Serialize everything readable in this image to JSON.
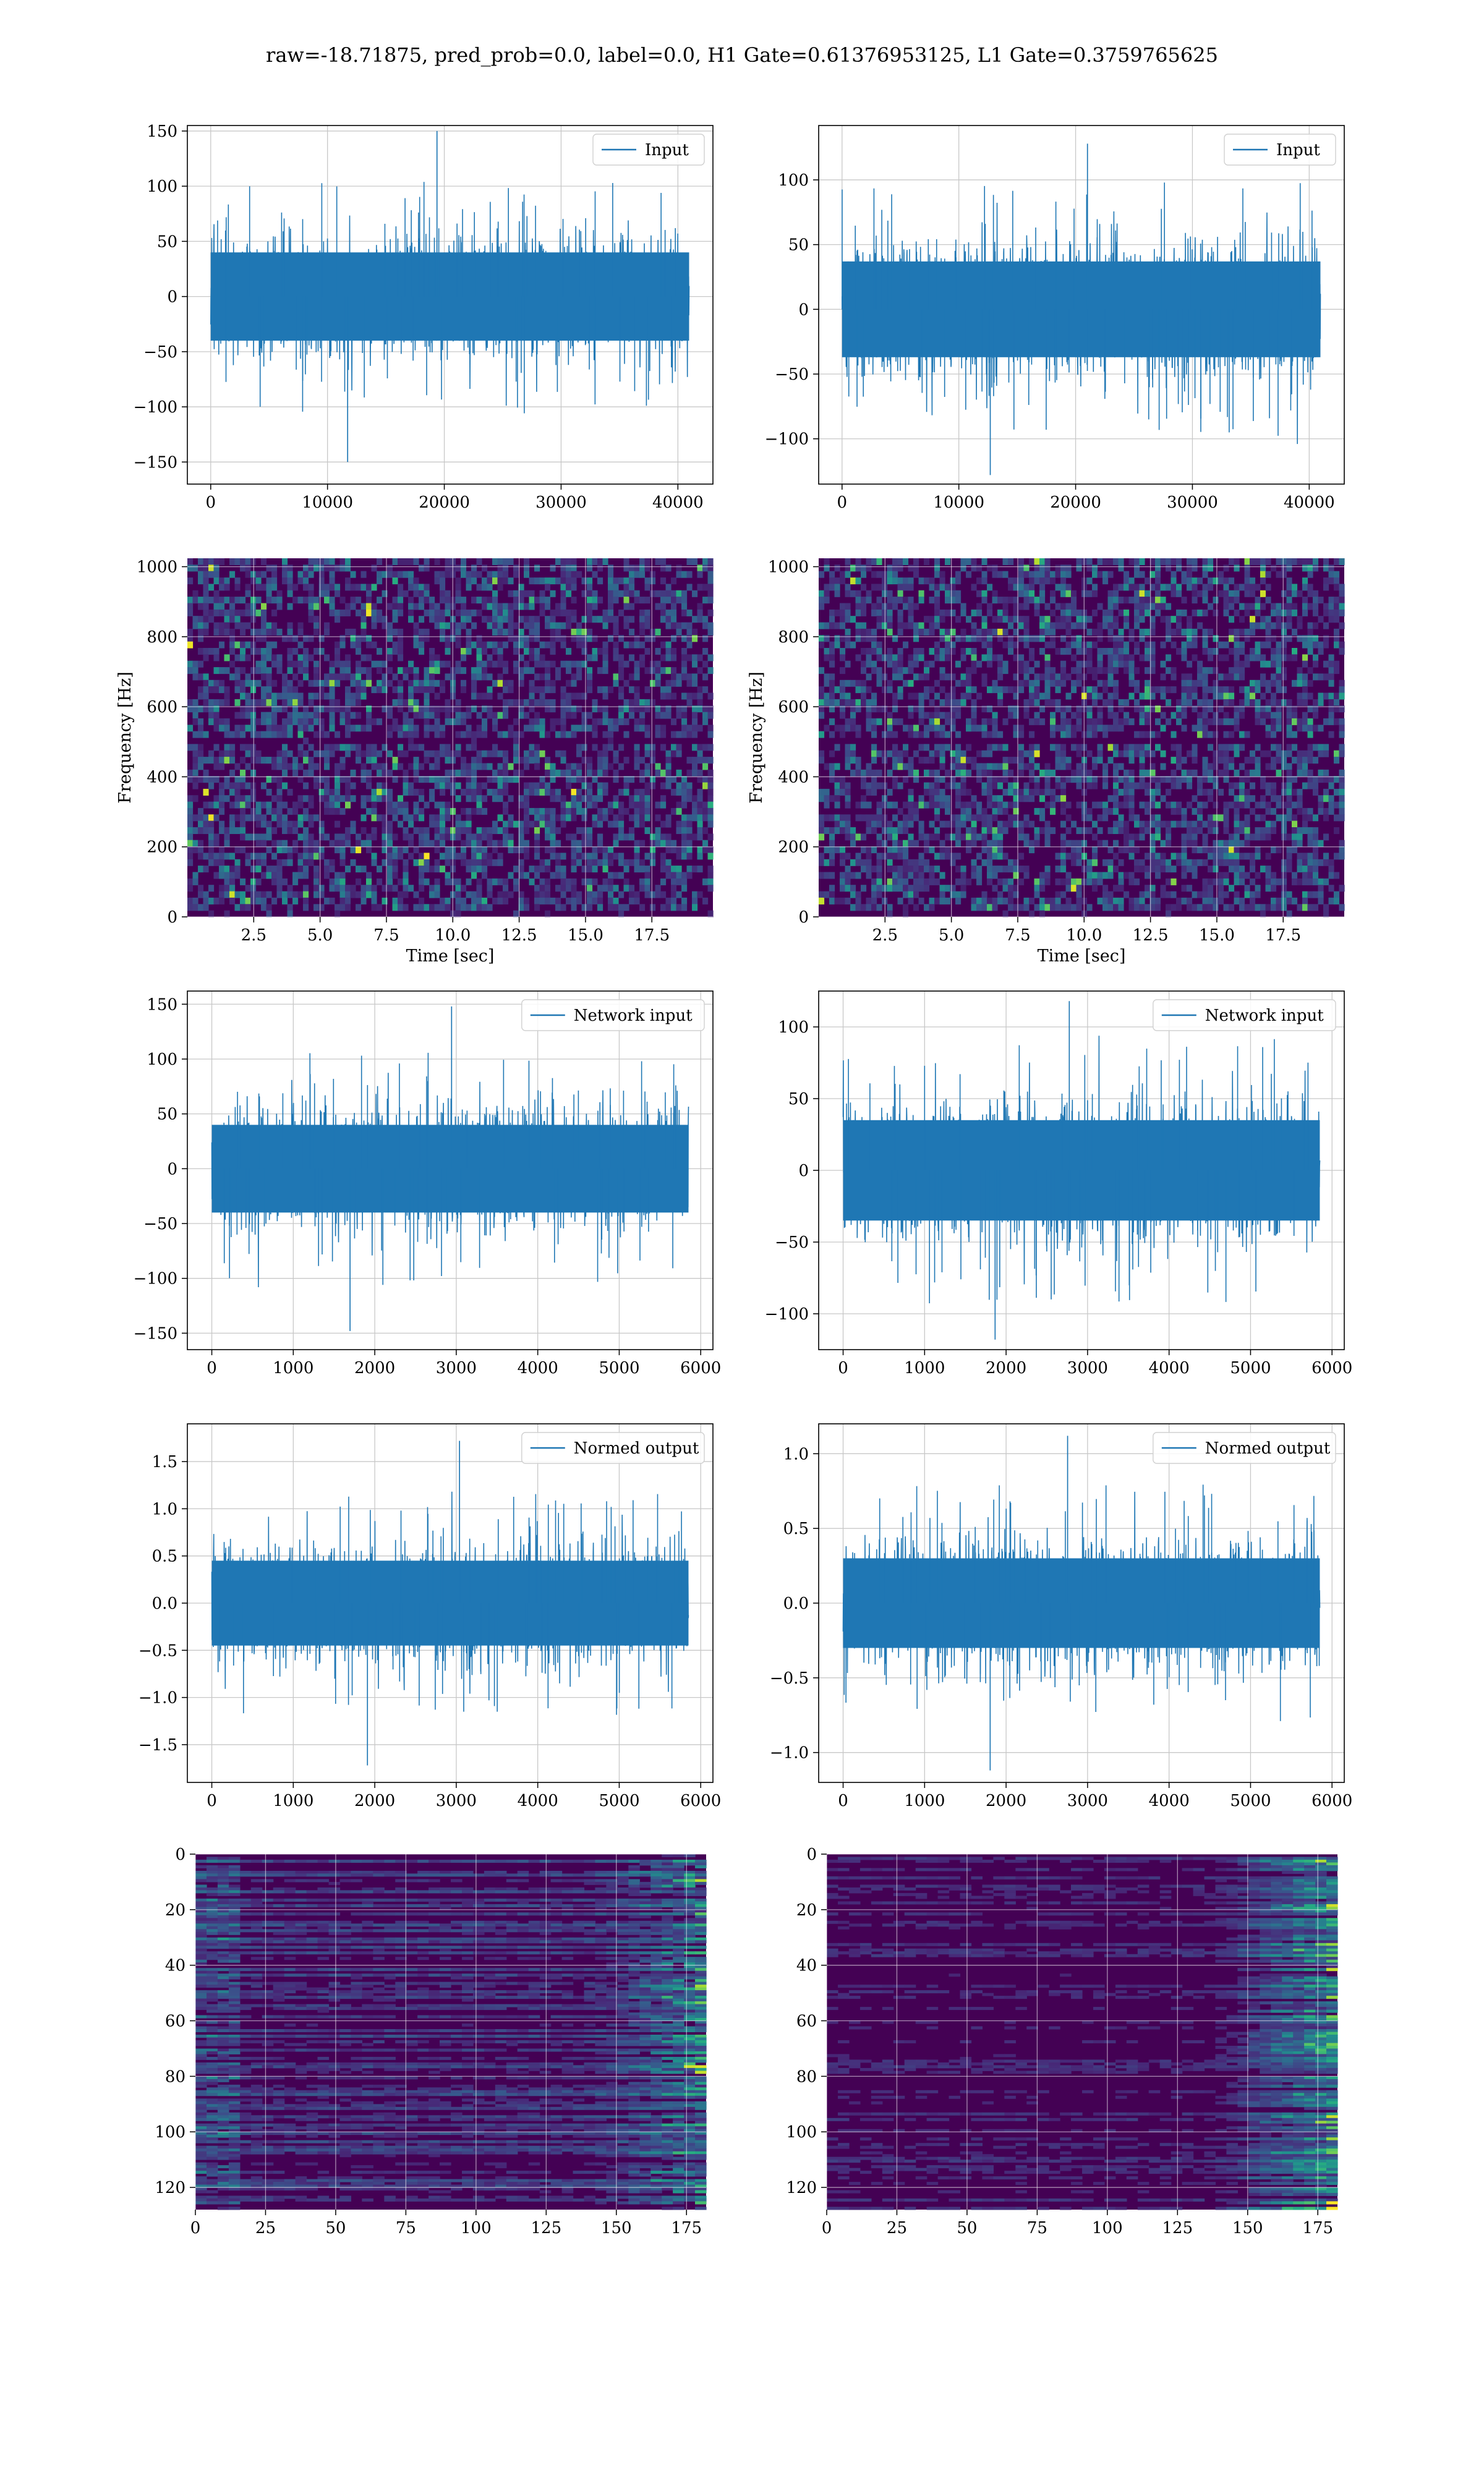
{
  "figure": {
    "suptitle": "raw=-18.71875, pred_prob=0.0, label=0.0, H1 Gate=0.61376953125, L1 Gate=0.3759765625"
  },
  "colors": {
    "line": "#1f77b4",
    "grid": "#c8c8c8",
    "viridis_low": "#440154",
    "viridis_mid": "#21918c",
    "viridis_high": "#fde725"
  },
  "chart_data": [
    {
      "id": "input-h1",
      "type": "line",
      "legend": "Input",
      "xlim": [
        -2000,
        43000
      ],
      "ylim": [
        -170,
        155
      ],
      "xticks": [
        0,
        10000,
        20000,
        30000,
        40000
      ],
      "yticks": [
        -150,
        -100,
        -50,
        0,
        50,
        100,
        150
      ],
      "xlabel": "",
      "ylabel": "",
      "legend_loc": "upper right",
      "signal": {
        "x_start": 0,
        "x_end": 40960,
        "band": 40,
        "peak": 150
      }
    },
    {
      "id": "input-l1",
      "type": "line",
      "legend": "Input",
      "xlim": [
        -2000,
        43000
      ],
      "ylim": [
        -135,
        142
      ],
      "xticks": [
        0,
        10000,
        20000,
        30000,
        40000
      ],
      "yticks": [
        -100,
        -50,
        0,
        50,
        100
      ],
      "xlabel": "",
      "ylabel": "",
      "legend_loc": "upper right",
      "signal": {
        "x_start": 0,
        "x_end": 40960,
        "band": 37,
        "peak": 128
      }
    },
    {
      "id": "spectrogram-h1",
      "type": "heatmap",
      "xlim": [
        0,
        19.8
      ],
      "ylim": [
        0,
        1024
      ],
      "xticks": [
        2.5,
        5.0,
        7.5,
        10.0,
        12.5,
        15.0,
        17.5
      ],
      "yticks": [
        0,
        200,
        400,
        600,
        800,
        1000
      ],
      "xlabel": "Time [sec]",
      "ylabel": "Frequency [Hz]"
    },
    {
      "id": "spectrogram-l1",
      "type": "heatmap",
      "xlim": [
        0,
        19.8
      ],
      "ylim": [
        0,
        1024
      ],
      "xticks": [
        2.5,
        5.0,
        7.5,
        10.0,
        12.5,
        15.0,
        17.5
      ],
      "yticks": [
        0,
        200,
        400,
        600,
        800,
        1000
      ],
      "xlabel": "Time [sec]",
      "ylabel": "Frequency [Hz]"
    },
    {
      "id": "network-input-h1",
      "type": "line",
      "legend": "Network input",
      "xlim": [
        -300,
        6150
      ],
      "ylim": [
        -165,
        162
      ],
      "xticks": [
        0,
        1000,
        2000,
        3000,
        4000,
        5000,
        6000
      ],
      "yticks": [
        -150,
        -100,
        -50,
        0,
        50,
        100,
        150
      ],
      "xlabel": "",
      "ylabel": "",
      "legend_loc": "upper right",
      "signal": {
        "x_start": 0,
        "x_end": 5850,
        "band": 40,
        "peak": 148
      }
    },
    {
      "id": "network-input-l1",
      "type": "line",
      "legend": "Network input",
      "xlim": [
        -300,
        6150
      ],
      "ylim": [
        -125,
        125
      ],
      "xticks": [
        0,
        1000,
        2000,
        3000,
        4000,
        5000,
        6000
      ],
      "yticks": [
        -100,
        -50,
        0,
        50,
        100
      ],
      "xlabel": "",
      "ylabel": "",
      "legend_loc": "upper right",
      "signal": {
        "x_start": 0,
        "x_end": 5850,
        "band": 35,
        "peak": 118
      }
    },
    {
      "id": "normed-output-h1",
      "type": "line",
      "legend": "Normed output",
      "xlim": [
        -300,
        6150
      ],
      "ylim": [
        -1.9,
        1.9
      ],
      "xticks": [
        0,
        1000,
        2000,
        3000,
        4000,
        5000,
        6000
      ],
      "yticks": [
        -1.5,
        -1.0,
        -0.5,
        0.0,
        0.5,
        1.0,
        1.5
      ],
      "xlabel": "",
      "ylabel": "",
      "legend_loc": "upper right",
      "signal": {
        "x_start": 0,
        "x_end": 5850,
        "band": 0.45,
        "peak": 1.72
      }
    },
    {
      "id": "normed-output-l1",
      "type": "line",
      "legend": "Normed output",
      "xlim": [
        -300,
        6150
      ],
      "ylim": [
        -1.2,
        1.2
      ],
      "xticks": [
        0,
        1000,
        2000,
        3000,
        4000,
        5000,
        6000
      ],
      "yticks": [
        -1.0,
        -0.5,
        0.0,
        0.5,
        1.0
      ],
      "xlabel": "",
      "ylabel": "",
      "legend_loc": "upper right",
      "signal": {
        "x_start": 0,
        "x_end": 5850,
        "band": 0.3,
        "peak": 1.12
      }
    },
    {
      "id": "feature-map-h1",
      "type": "heatmap",
      "xlim": [
        0,
        182
      ],
      "ylim": [
        128,
        0
      ],
      "xticks": [
        0,
        25,
        50,
        75,
        100,
        125,
        150,
        175
      ],
      "yticks": [
        0,
        20,
        40,
        60,
        80,
        100,
        120
      ],
      "xlabel": "",
      "ylabel": ""
    },
    {
      "id": "feature-map-l1",
      "type": "heatmap",
      "xlim": [
        0,
        182
      ],
      "ylim": [
        128,
        0
      ],
      "xticks": [
        0,
        25,
        50,
        75,
        100,
        125,
        150,
        175
      ],
      "yticks": [
        0,
        20,
        40,
        60,
        80,
        100,
        120
      ],
      "xlabel": "",
      "ylabel": ""
    }
  ]
}
